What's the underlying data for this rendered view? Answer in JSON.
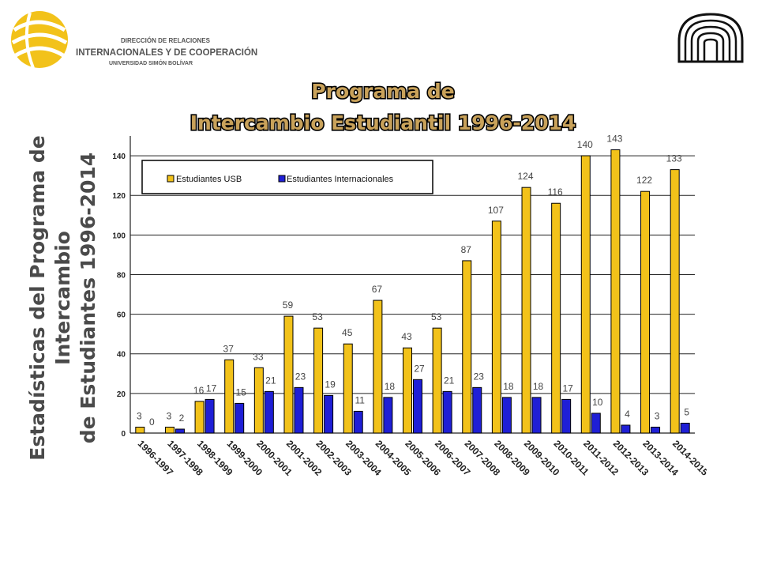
{
  "header": {
    "logo_line1": "DIRECCIÓN DE RELACIONES",
    "logo_line2": "INTERNACIONALES Y DE COOPERACIÓN",
    "logo_line3": "UNIVERSIDAD SIMÓN BOLÍVAR",
    "logo_icon": "usb-sphere-logo",
    "right_logo_icon": "usb-seal-logo"
  },
  "side_title": {
    "line1": "Estadísticas del Programa de Intercambio",
    "line2": "de Estudiantes 1996-2014"
  },
  "colors": {
    "series1": "#f2c21a",
    "series2": "#1f1fd6",
    "title_fill": "#c9a25a",
    "title_stroke": "#000000"
  },
  "chart_data": {
    "type": "bar",
    "title_line1": "Programa de",
    "title_line2": "Intercambio Estudiantil 1996-2014",
    "categories": [
      "1996-1997",
      "1997-1998",
      "1998-1999",
      "1999-2000",
      "2000-2001",
      "2001-2002",
      "2002-2003",
      "2003-2004",
      "2004-2005",
      "2005-2006",
      "2006-2007",
      "2007-2008",
      "2008-2009",
      "2009-2010",
      "2010-2011",
      "2011-2012",
      "2012-2013",
      "2013-2014",
      "2014-2015"
    ],
    "series": [
      {
        "name": "Estudiantes USB",
        "values": [
          3,
          3,
          16,
          37,
          33,
          59,
          53,
          45,
          67,
          43,
          53,
          87,
          107,
          124,
          116,
          140,
          143,
          122,
          133
        ]
      },
      {
        "name": "Estudiantes Internacionales",
        "values": [
          0,
          2,
          17,
          15,
          21,
          23,
          19,
          11,
          18,
          27,
          21,
          23,
          18,
          18,
          17,
          10,
          4,
          3,
          5
        ]
      }
    ],
    "ylim": [
      0,
      150
    ],
    "yticks": [
      0,
      20,
      40,
      60,
      80,
      100,
      120,
      140
    ],
    "grid": true,
    "legend_position": "top-left"
  }
}
